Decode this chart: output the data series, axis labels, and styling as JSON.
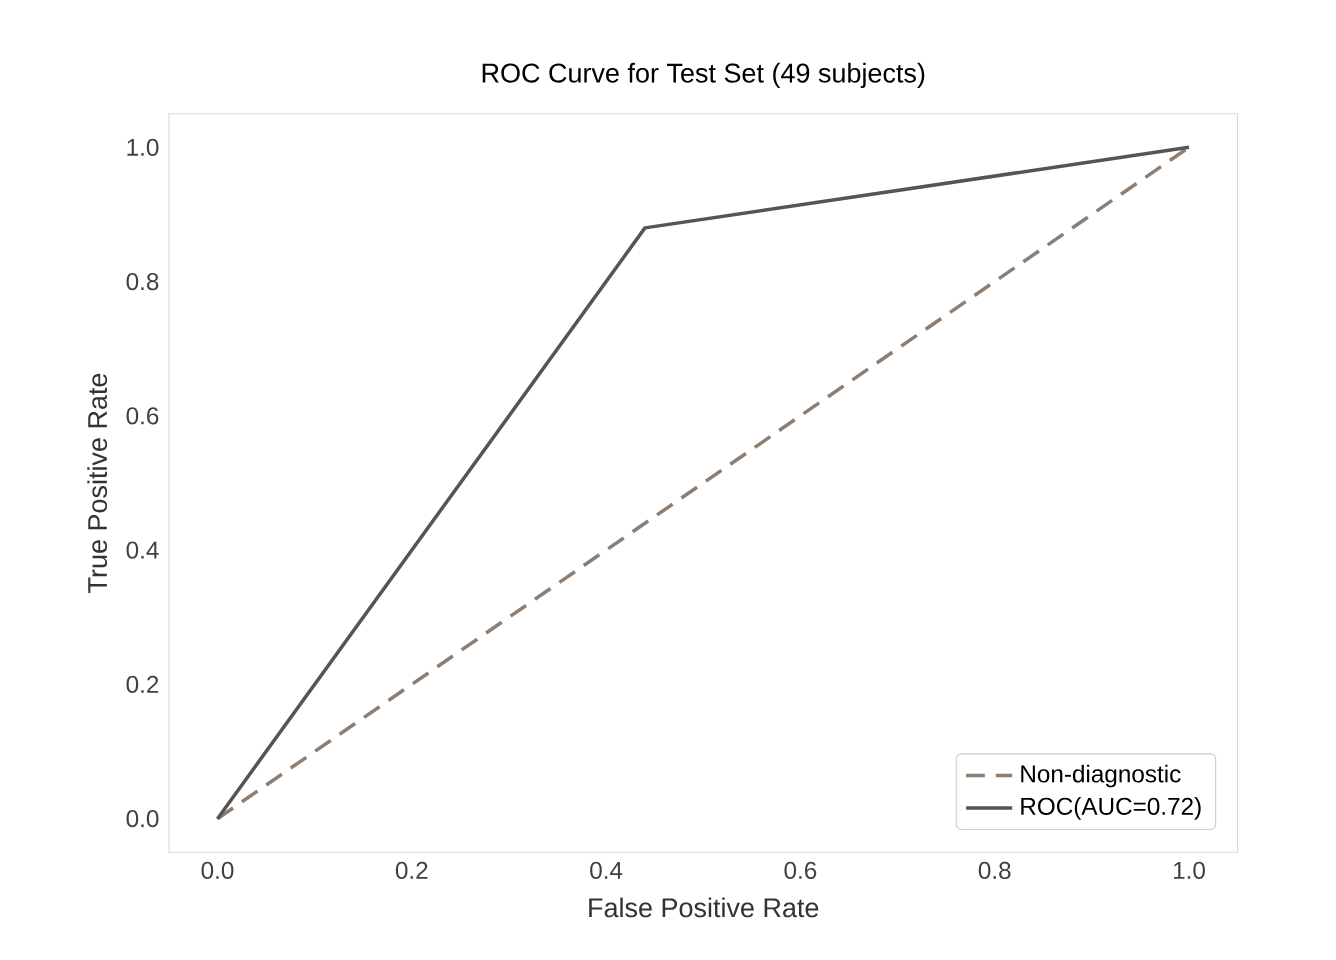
{
  "chart_data": {
    "type": "line",
    "title": "ROC Curve for Test Set (49 subjects)",
    "xlabel": "False Positive Rate",
    "ylabel": "True Positive Rate",
    "xlim": [
      -0.05,
      1.05
    ],
    "ylim": [
      -0.05,
      1.05
    ],
    "xticks": [
      {
        "value": 0,
        "label": "0.0"
      },
      0.2,
      0.4,
      0.6,
      0.8,
      {
        "value": 1,
        "label": "1.0"
      }
    ],
    "yticks": [
      {
        "value": 0,
        "label": "0.0"
      },
      0.2,
      0.4,
      0.6,
      0.8,
      {
        "value": 1,
        "label": "1.0"
      }
    ],
    "grid": false,
    "legend": "bottom right",
    "series": [
      {
        "name": "Non-diagnostic",
        "color": "#8c7e72",
        "line_style": "dashed",
        "x": [
          0,
          1
        ],
        "values": [
          0,
          1
        ]
      },
      {
        "name": "ROC(AUC=0.72)",
        "color": "#555555",
        "line_style": "solid",
        "x": [
          0,
          0.44,
          1
        ],
        "values": [
          0,
          0.88,
          1
        ]
      }
    ]
  }
}
